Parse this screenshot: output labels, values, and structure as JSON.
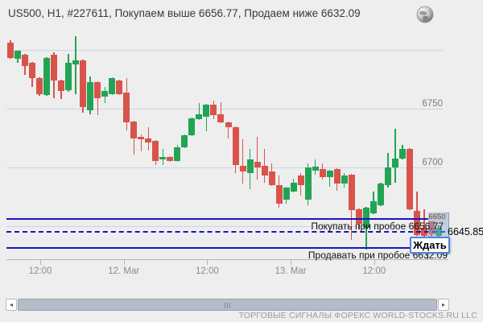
{
  "title": "US500, H1, #227611, Покупаем выше 6656.77, Продаем ниже 6632.09",
  "footer": "ТОРГОВЫЕ СИГНАЛЫ ФОРЕКС WORLD-STOCKS.RU LLC",
  "tooltip": {
    "wait_label": "Ждать",
    "selection_tag": "6650"
  },
  "levels": {
    "buy": {
      "price": 6656.77,
      "label": "Покупать при пробое 6656.77"
    },
    "sell": {
      "price": 6632.09,
      "label": "Продавать при пробое 6632.09"
    },
    "current": {
      "price": 6645.85,
      "label": "6645.85"
    }
  },
  "y_axis": {
    "gridlines": [
      6800,
      6750,
      6700,
      6650
    ],
    "labels": [
      "6750",
      "6700"
    ],
    "label_prices": [
      6750,
      6700
    ]
  },
  "x_axis": {
    "labels": [
      "12:00",
      "12. Mar",
      "12:00",
      "13. Mar",
      "12:00"
    ]
  },
  "colors": {
    "up": "#22a455",
    "down": "#d8544b",
    "signal_line": "#1a15c0",
    "grid": "#cdd6de",
    "background": "#eeeeee"
  },
  "chart_data": {
    "type": "candlestick",
    "symbol": "US500",
    "timeframe": "H1",
    "signal_id": "#227611",
    "buy_above": 6656.77,
    "sell_below": 6632.09,
    "current_price": 6645.85,
    "x_labels": [
      "12:00",
      "12. Mar",
      "12:00",
      "13. Mar",
      "12:00"
    ],
    "ylim": [
      6620,
      6812
    ],
    "grid": "horizontal-only",
    "candles_ohlc": [
      [
        6806.5,
        6808.6,
        6792.8,
        6793.5
      ],
      [
        6792.8,
        6800.0,
        6789.4,
        6799.7
      ],
      [
        6796.2,
        6796.9,
        6779.1,
        6786.6
      ],
      [
        6789.4,
        6790.0,
        6768.8,
        6776.4
      ],
      [
        6776.4,
        6777.0,
        6761.0,
        6762.7
      ],
      [
        6762.0,
        6794.0,
        6761.0,
        6793.5
      ],
      [
        6796.2,
        6798.3,
        6759.2,
        6774.3
      ],
      [
        6774.3,
        6775.0,
        6758.6,
        6765.4
      ],
      [
        6766.1,
        6796.9,
        6765.0,
        6789.4
      ],
      [
        6788.0,
        6812.0,
        6762.7,
        6791.4
      ],
      [
        6791.4,
        6792.0,
        6746.9,
        6751.7
      ],
      [
        6749.0,
        6777.7,
        6745.5,
        6772.9
      ],
      [
        6772.9,
        6773.5,
        6744.9,
        6759.2
      ],
      [
        6760.6,
        6768.8,
        6755.1,
        6765.4
      ],
      [
        6762.7,
        6777.0,
        6762.0,
        6776.4
      ],
      [
        6774.3,
        6775.0,
        6762.0,
        6762.7
      ],
      [
        6764.0,
        6776.4,
        6731.8,
        6738.7
      ],
      [
        6739.4,
        6740.0,
        6711.3,
        6725.0
      ],
      [
        6726.4,
        6728.4,
        6714.0,
        6724.3
      ],
      [
        6725.0,
        6734.6,
        6714.7,
        6721.6
      ],
      [
        6722.9,
        6723.5,
        6702.4,
        6705.8
      ],
      [
        6707.2,
        6716.1,
        6702.4,
        6709.2
      ],
      [
        6709.2,
        6710.0,
        6705.0,
        6705.8
      ],
      [
        6705.8,
        6719.5,
        6705.0,
        6717.5
      ],
      [
        6717.5,
        6728.4,
        6717.0,
        6727.7
      ],
      [
        6727.7,
        6743.0,
        6727.0,
        6742.1
      ],
      [
        6741.4,
        6755.1,
        6741.0,
        6745.5
      ],
      [
        6743.5,
        6754.5,
        6731.2,
        6753.8
      ],
      [
        6753.8,
        6757.2,
        6741.4,
        6744.9
      ],
      [
        6745.5,
        6755.8,
        6738.0,
        6738.7
      ],
      [
        6738.7,
        6739.4,
        6725.0,
        6734.6
      ],
      [
        6734.6,
        6735.0,
        6695.5,
        6702.4
      ],
      [
        6701.7,
        6724.3,
        6686.6,
        6696.9
      ],
      [
        6695.5,
        6716.1,
        6681.8,
        6707.2
      ],
      [
        6705.1,
        6726.4,
        6690.0,
        6700.3
      ],
      [
        6701.7,
        6716.1,
        6687.3,
        6693.5
      ],
      [
        6696.9,
        6703.8,
        6684.5,
        6685.3
      ],
      [
        6685.3,
        6693.5,
        6666.1,
        6669.5
      ],
      [
        6673.0,
        6684.0,
        6669.5,
        6683.2
      ],
      [
        6679.8,
        6690.8,
        6679.0,
        6687.3
      ],
      [
        6693.5,
        6695.5,
        6676.4,
        6685.3
      ],
      [
        6672.9,
        6703.8,
        6668.2,
        6700.3
      ],
      [
        6697.6,
        6707.2,
        6694.2,
        6701.0
      ],
      [
        6699.0,
        6703.8,
        6690.1,
        6692.1
      ],
      [
        6692.1,
        6698.3,
        6683.9,
        6697.6
      ],
      [
        6699.0,
        6699.6,
        6680.5,
        6686.6
      ],
      [
        6686.6,
        6695.5,
        6683.2,
        6693.5
      ],
      [
        6694.2,
        6695.0,
        6638.7,
        6664.0
      ],
      [
        6664.7,
        6665.4,
        6647.6,
        6652.4
      ],
      [
        6648.9,
        6667.0,
        6630.5,
        6666.1
      ],
      [
        6661.3,
        6679.8,
        6660.6,
        6671.6
      ],
      [
        6668.2,
        6687.3,
        6667.5,
        6686.6
      ],
      [
        6685.3,
        6712.7,
        6683.2,
        6700.3
      ],
      [
        6700.3,
        6733.2,
        6687.3,
        6707.9
      ],
      [
        6707.9,
        6719.5,
        6707.0,
        6716.1
      ],
      [
        6716.1,
        6717.0,
        6664.0,
        6664.7
      ],
      [
        6663.3,
        6679.8,
        6642.1,
        6642.8
      ],
      [
        6649.0,
        6664.7,
        6639.4,
        6642.1
      ],
      [
        6656.5,
        6661.3,
        6641.4,
        6643.5
      ],
      [
        6642.0,
        6651.0,
        6641.0,
        6649.0
      ]
    ]
  }
}
